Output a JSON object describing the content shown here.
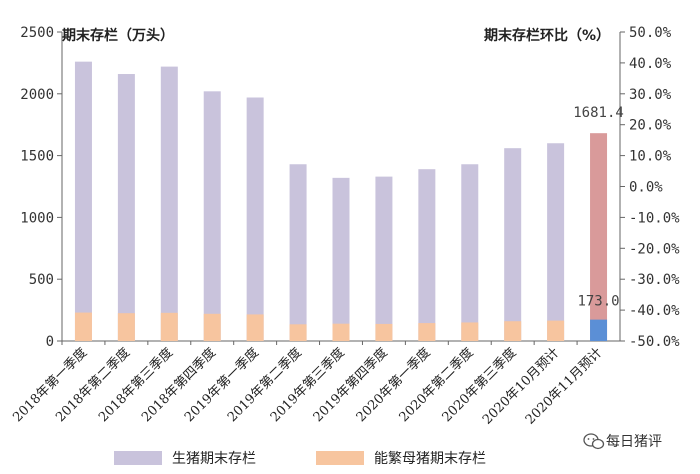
{
  "chart_data": {
    "type": "bar",
    "left_axis_title": "期末存栏（万头）",
    "right_axis_title": "期末存栏环比（%）",
    "y_left": {
      "min": 0,
      "max": 2500,
      "ticks": [
        0,
        500,
        1000,
        1500,
        2000,
        2500
      ]
    },
    "y_right": {
      "min": -50,
      "max": 50,
      "ticks": [
        "-50.0%",
        "-40.0%",
        "-30.0%",
        "-20.0%",
        "-10.0%",
        "0.0%",
        "10.0%",
        "20.0%",
        "30.0%",
        "40.0%",
        "50.0%"
      ]
    },
    "categories": [
      "2018年第一季度",
      "2018年第二季度",
      "2018年第三季度",
      "2018年第四季度",
      "2019年第一季度",
      "2019年第二季度",
      "2019年第三季度",
      "2019年第四季度",
      "2020年第一季度",
      "2020年第二季度",
      "2020年第三季度",
      "2020年10月预计",
      "2020年11月预计"
    ],
    "series": [
      {
        "name": "生猪期末存栏",
        "color": "#c9c3dc",
        "highlight_color": "#d99a9a",
        "values": [
          2260,
          2160,
          2220,
          2020,
          1970,
          1430,
          1320,
          1330,
          1390,
          1430,
          1560,
          1600,
          1681.4
        ]
      },
      {
        "name": "能繁母猪期末存栏",
        "color": "#f7c59f",
        "highlight_color": "#5b8fd6",
        "values": [
          230,
          225,
          228,
          220,
          215,
          135,
          140,
          138,
          145,
          150,
          160,
          165,
          173.0
        ]
      }
    ],
    "data_labels": {
      "sow_last": "173.0",
      "hog_last": "1681.4"
    },
    "legend_position": "bottom",
    "grid": false
  },
  "watermark": {
    "text": "每日猪评",
    "icon": "wechat-icon"
  }
}
